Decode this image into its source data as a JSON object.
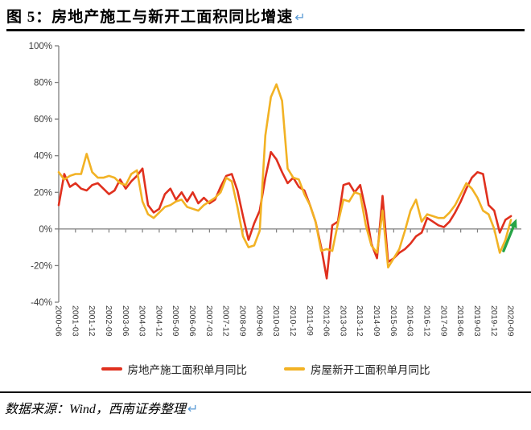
{
  "page": {
    "title": "图 5：房地产施工与新开工面积同比增速",
    "source": "数据来源：Wind，西南证券整理",
    "return_mark": "↵",
    "colors": {
      "series_construction": "#E0301E",
      "series_new_starts": "#F2B224",
      "arrow_green": "#27A447",
      "axis": "#7f7f7f",
      "tick_label": "#3d3d3d",
      "return_mark_blue": "#5B9BD5"
    }
  },
  "chart_data": {
    "type": "line",
    "x_start": "2000-06",
    "x_end": "2020-09",
    "x_step_months": 3,
    "x_tick_step_months": 9,
    "x_tick_labels": [
      "2000-06",
      "2001-03",
      "2001-12",
      "2002-09",
      "2003-06",
      "2004-03",
      "2004-12",
      "2005-09",
      "2006-06",
      "2007-03",
      "2007-12",
      "2008-09",
      "2009-06",
      "2010-03",
      "2010-12",
      "2011-09",
      "2012-06",
      "2013-03",
      "2013-12",
      "2014-09",
      "2015-06",
      "2016-03",
      "2016-12",
      "2017-09",
      "2018-06",
      "2019-03",
      "2019-12",
      "2020-09"
    ],
    "ylim": [
      -40,
      100
    ],
    "y_ticks": [
      {
        "v": 100,
        "label": "100%"
      },
      {
        "v": 80,
        "label": "80%"
      },
      {
        "v": 60,
        "label": "60%"
      },
      {
        "v": 40,
        "label": "40%"
      },
      {
        "v": 20,
        "label": "20%"
      },
      {
        "v": 0,
        "label": "0%"
      },
      {
        "v": -20,
        "label": "-20%"
      },
      {
        "v": -40,
        "label": "-40%"
      }
    ],
    "grid": false,
    "legend_position": "bottom",
    "series": [
      {
        "name": "房地产施工面积单月同比",
        "color": "#E0301E",
        "values": [
          13,
          30,
          23,
          25,
          22,
          21,
          24,
          25,
          22,
          19,
          21,
          27,
          22,
          26,
          29,
          33,
          13,
          9,
          11,
          19,
          22,
          16,
          20,
          15,
          20,
          14,
          17,
          14,
          16,
          23,
          29,
          30,
          21,
          7,
          -6,
          3,
          10,
          28,
          42,
          38,
          31,
          25,
          28,
          23,
          21,
          13,
          4,
          -10,
          -27,
          2,
          4,
          24,
          25,
          20,
          24,
          10,
          -8,
          -16,
          18,
          -18,
          -16,
          -13,
          -11,
          -8,
          -4,
          -2,
          6,
          4,
          2,
          1,
          4,
          9,
          15,
          22,
          28,
          31,
          30,
          13,
          10,
          -2,
          5,
          7
        ]
      },
      {
        "name": "房屋新开工面积单月同比",
        "color": "#F2B224",
        "values": [
          31,
          27,
          29,
          30,
          30,
          41,
          31,
          28,
          28,
          29,
          28,
          25,
          24,
          30,
          32,
          15,
          8,
          6,
          9,
          12,
          13,
          15,
          16,
          12,
          11,
          10,
          13,
          15,
          17,
          20,
          28,
          26,
          12,
          -4,
          -10,
          -9,
          -1,
          51,
          72,
          79,
          70,
          33,
          28,
          27,
          19,
          13,
          4,
          -12,
          -11,
          -12,
          3,
          16,
          15,
          20,
          19,
          2,
          -9,
          -13,
          10,
          -21,
          -16,
          -11,
          -1,
          10,
          16,
          4,
          8,
          7,
          6,
          6,
          9,
          13,
          19,
          25,
          22,
          17,
          10,
          8,
          0,
          -13,
          -6,
          5
        ]
      }
    ],
    "annotation": {
      "type": "arrow",
      "color": "#27A447",
      "from": {
        "t": 239,
        "v": -12
      },
      "to": {
        "t": 246,
        "v": 5.5
      }
    }
  }
}
